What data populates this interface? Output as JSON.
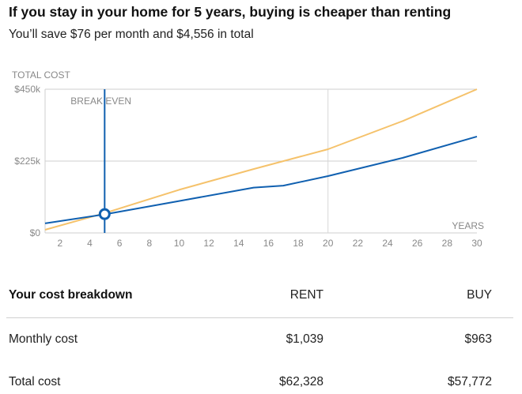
{
  "headline": "If you stay in your home for 5 years, buying is cheaper than renting",
  "subhead": "You’ll save $76 per month and $4,556 in total",
  "chart_data": {
    "type": "line",
    "ylabel": "TOTAL COST",
    "xlabel": "YEARS",
    "y_ticks": [
      {
        "value": 0,
        "label": "$0"
      },
      {
        "value": 225000,
        "label": "$225k"
      },
      {
        "value": 450000,
        "label": "$450k"
      }
    ],
    "x_ticks": [
      2,
      4,
      6,
      8,
      10,
      12,
      14,
      16,
      18,
      20,
      22,
      24,
      26,
      28,
      30
    ],
    "xlim": [
      1,
      30
    ],
    "ylim": [
      0,
      450000
    ],
    "annotation": {
      "label": "BREAK EVEN",
      "x": 5,
      "y": 59000
    },
    "highlight_x": 20,
    "series": [
      {
        "color": "#f5c26b",
        "x": [
          1,
          5,
          10,
          15,
          20,
          25,
          30
        ],
        "values": [
          10000,
          62000,
          135000,
          200000,
          262000,
          350000,
          450000
        ]
      },
      {
        "color": "#1060b0",
        "x": [
          1,
          5,
          10,
          15,
          17,
          20,
          25,
          30
        ],
        "values": [
          30000,
          58000,
          100000,
          142000,
          148000,
          178000,
          235000,
          302000
        ]
      }
    ]
  },
  "breakdown": {
    "title": "Your cost breakdown",
    "col_rent": "RENT",
    "col_buy": "BUY",
    "rows": [
      {
        "label": "Monthly cost",
        "rent": "$1,039",
        "buy": "$963"
      },
      {
        "label": "Total cost",
        "rent": "$62,328",
        "buy": "$57,772"
      }
    ]
  }
}
